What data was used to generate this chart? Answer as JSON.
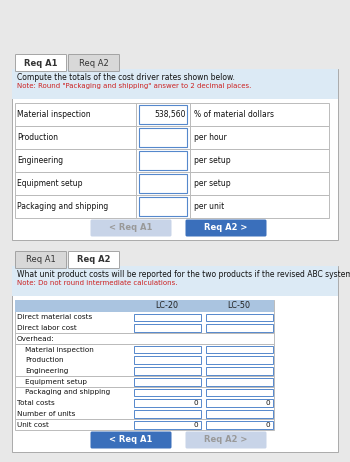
{
  "bg_color": "#e8e8e8",
  "panel_bg": "#ffffff",
  "tab_active_bg": "#ffffff",
  "tab_inactive_bg": "#d8d8d8",
  "header_bg": "#dceaf5",
  "note_color": "#cc2222",
  "input_border": "#5588cc",
  "button_active_bg": "#3a6fbb",
  "button_active_fg": "#ffffff",
  "button_inactive_bg": "#c8d4e8",
  "button_inactive_fg": "#999999",
  "table_header_bg": "#aac4e0",
  "table_header_fg": "#222222",
  "grid_color": "#bbbbbb",
  "panel1": {
    "tabs": [
      "Req A1",
      "Req A2"
    ],
    "active_tab": 0,
    "header_line1": "Compute the totals of the cost driver rates shown below.",
    "header_line2": "Note: Round \"Packaging and shipping\" answer to 2 decimal places.",
    "rows": [
      [
        "Material inspection",
        "538,560",
        "% of material dollars"
      ],
      [
        "Production",
        "",
        "per hour"
      ],
      [
        "Engineering",
        "",
        "per setup"
      ],
      [
        "Equipment setup",
        "",
        "per setup"
      ],
      [
        "Packaging and shipping",
        "",
        "per unit"
      ]
    ],
    "btn_left_text": "< Req A1",
    "btn_left_active": false,
    "btn_right_text": "Req A2 >",
    "btn_right_active": true
  },
  "panel2": {
    "tabs": [
      "Req A1",
      "Req A2"
    ],
    "active_tab": 1,
    "header_line1": "What unit product costs will be reported for the two products if the revised ABC system is used?",
    "header_line2": "Note: Do not round intermediate calculations.",
    "col_headers": [
      "LC-20",
      "LC-50"
    ],
    "rows": [
      [
        "Direct material costs",
        "",
        ""
      ],
      [
        "Direct labor cost",
        "",
        ""
      ],
      [
        "Overhead:",
        "",
        ""
      ],
      [
        "  Material inspection",
        "",
        ""
      ],
      [
        "  Production",
        "",
        ""
      ],
      [
        "  Engineering",
        "",
        ""
      ],
      [
        "  Equipment setup",
        "",
        ""
      ],
      [
        "  Packaging and shipping",
        "",
        ""
      ],
      [
        "Total costs",
        "0",
        "0"
      ],
      [
        "Number of units",
        "",
        ""
      ],
      [
        "Unit cost",
        "0",
        "0"
      ]
    ],
    "btn_left_text": "< Req A1",
    "btn_left_active": true,
    "btn_right_text": "Req A2 >",
    "btn_right_active": false
  }
}
